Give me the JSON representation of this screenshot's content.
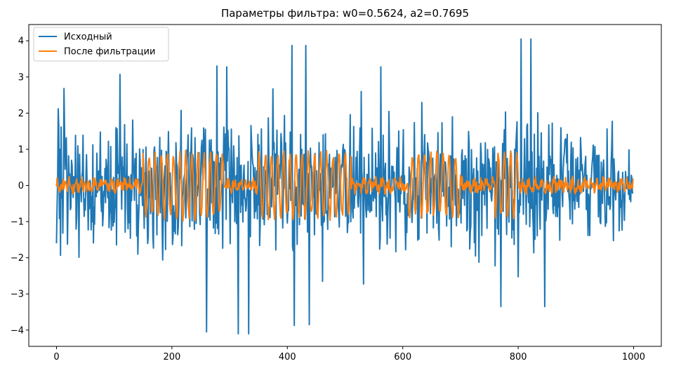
{
  "chart_data": {
    "type": "line",
    "title": "Параметры фильтра: w0=0.5624, a2=0.7695",
    "xlabel": "",
    "ylabel": "",
    "xlim": [
      -48,
      1048
    ],
    "ylim": [
      -4.45,
      4.45
    ],
    "x_ticks": [
      0,
      200,
      400,
      600,
      800,
      1000
    ],
    "x_tick_labels": [
      "0",
      "200",
      "400",
      "600",
      "800",
      "1000"
    ],
    "y_ticks": [
      -4,
      -3,
      -2,
      -1,
      0,
      1,
      2,
      3,
      4
    ],
    "y_tick_labels": [
      "−4",
      "−3",
      "−2",
      "−1",
      "0",
      "1",
      "2",
      "3",
      "4"
    ],
    "grid": false,
    "legend": "top-left",
    "x": {
      "start": 0,
      "end": 999,
      "count": 1000
    },
    "series": [
      {
        "name": "Исходный",
        "color": "#1f77b4",
        "description": "noise-like signal, amplitude about ±2.5, peaks between −4.1 and 4.05",
        "notable_points": [
          {
            "x": 0,
            "y": -1.6
          },
          {
            "x": 3,
            "y": 2.12
          },
          {
            "x": 13,
            "y": 2.68
          },
          {
            "x": 110,
            "y": 3.07
          },
          {
            "x": 260,
            "y": -4.05
          },
          {
            "x": 278,
            "y": 3.3
          },
          {
            "x": 295,
            "y": 3.28
          },
          {
            "x": 315,
            "y": -4.1
          },
          {
            "x": 333,
            "y": -4.1
          },
          {
            "x": 408,
            "y": 3.87
          },
          {
            "x": 412,
            "y": -3.87
          },
          {
            "x": 432,
            "y": 3.87
          },
          {
            "x": 438,
            "y": -3.85
          },
          {
            "x": 562,
            "y": 3.28
          },
          {
            "x": 770,
            "y": -3.35
          },
          {
            "x": 805,
            "y": 4.05
          },
          {
            "x": 822,
            "y": 4.05
          },
          {
            "x": 846,
            "y": -3.35
          },
          {
            "x": 999,
            "y": -0.2
          }
        ]
      },
      {
        "name": "После фильтрации",
        "color": "#ff7f0e",
        "description": "filtered signal, mostly ±0.3 with burst segments reaching about ±1",
        "burst_ranges": [
          [
            150,
            290
          ],
          [
            350,
            510
          ],
          [
            610,
            700
          ],
          [
            760,
            800
          ]
        ],
        "burst_amplitude": 0.95,
        "quiet_amplitude": 0.25
      }
    ]
  }
}
